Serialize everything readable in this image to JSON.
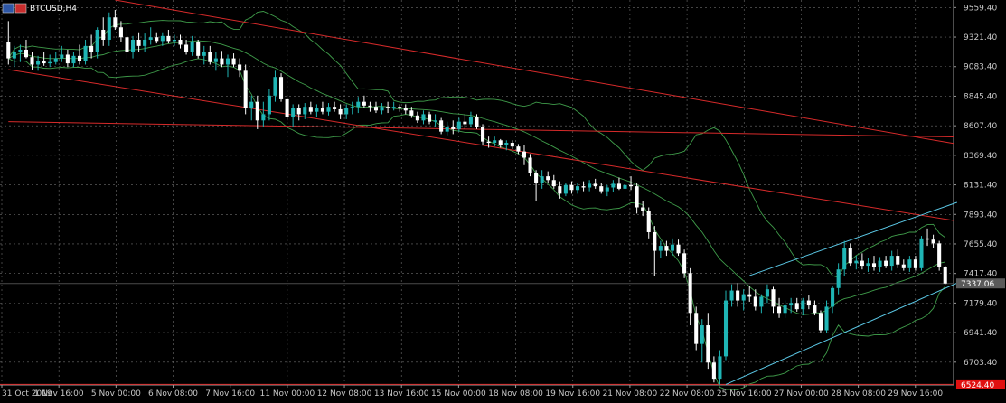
{
  "header": {
    "symbol": "BTCUSD,H4"
  },
  "chart_data": {
    "type": "candlestick",
    "symbol": "BTCUSD",
    "timeframe": "H4",
    "grid": true,
    "ylim": [
      6520,
      9620
    ],
    "y_ticks": [
      "9559.40",
      "9321.40",
      "9083.40",
      "8845.40",
      "8607.40",
      "8369.40",
      "8131.40",
      "7893.40",
      "7655.40",
      "7417.40",
      "7179.40",
      "6941.40",
      "6703.40"
    ],
    "x_ticks": [
      "31 Oct 2019",
      "1 Nov 16:00",
      "5 Nov 00:00",
      "6 Nov 08:00",
      "7 Nov 16:00",
      "11 Nov 00:00",
      "12 Nov 08:00",
      "13 Nov 16:00",
      "15 Nov 00:00",
      "18 Nov 08:00",
      "19 Nov 16:00",
      "21 Nov 08:00",
      "22 Nov 08:00",
      "25 Nov 16:00",
      "27 Nov 00:00",
      "28 Nov 08:00",
      "29 Nov 16:00"
    ],
    "current_price": "7337.06",
    "low_level": "6524.40",
    "colors": {
      "bull": "#1fb5b5",
      "bear": "#ffffff",
      "grid": "#6e6e6e",
      "band": "#3f9c4a",
      "trend": "#d62a2a",
      "channel": "#5bc8e6",
      "price_tag_bg": "#5a5a5a",
      "low_tag_bg": "#e01010"
    },
    "candles": [
      [
        9280,
        9450,
        9100,
        9150
      ],
      [
        9150,
        9250,
        9080,
        9200
      ],
      [
        9200,
        9260,
        9120,
        9220
      ],
      [
        9220,
        9300,
        9150,
        9160
      ],
      [
        9160,
        9200,
        9060,
        9100
      ],
      [
        9100,
        9170,
        9050,
        9130
      ],
      [
        9130,
        9200,
        9090,
        9110
      ],
      [
        9110,
        9180,
        9080,
        9120
      ],
      [
        9120,
        9200,
        9100,
        9150
      ],
      [
        9150,
        9250,
        9120,
        9180
      ],
      [
        9180,
        9220,
        9080,
        9110
      ],
      [
        9110,
        9200,
        9080,
        9170
      ],
      [
        9170,
        9260,
        9100,
        9130
      ],
      [
        9130,
        9300,
        9100,
        9250
      ],
      [
        9250,
        9340,
        9150,
        9200
      ],
      [
        9200,
        9400,
        9150,
        9380
      ],
      [
        9380,
        9480,
        9250,
        9300
      ],
      [
        9300,
        9520,
        9250,
        9480
      ],
      [
        9480,
        9540,
        9380,
        9400
      ],
      [
        9400,
        9450,
        9280,
        9320
      ],
      [
        9320,
        9400,
        9150,
        9200
      ],
      [
        9200,
        9330,
        9150,
        9300
      ],
      [
        9300,
        9360,
        9200,
        9250
      ],
      [
        9250,
        9350,
        9200,
        9300
      ],
      [
        9300,
        9400,
        9260,
        9320
      ],
      [
        9320,
        9360,
        9270,
        9290
      ],
      [
        9290,
        9360,
        9250,
        9330
      ],
      [
        9330,
        9380,
        9270,
        9290
      ],
      [
        9290,
        9340,
        9250,
        9300
      ],
      [
        9300,
        9340,
        9230,
        9260
      ],
      [
        9260,
        9300,
        9180,
        9200
      ],
      [
        9200,
        9330,
        9170,
        9280
      ],
      [
        9280,
        9300,
        9150,
        9170
      ],
      [
        9170,
        9250,
        9100,
        9200
      ],
      [
        9200,
        9250,
        9100,
        9120
      ],
      [
        9120,
        9200,
        9050,
        9150
      ],
      [
        9150,
        9210,
        9080,
        9100
      ],
      [
        9100,
        9180,
        9000,
        9150
      ],
      [
        9150,
        9190,
        9080,
        9100
      ],
      [
        9100,
        9150,
        9000,
        9050
      ],
      [
        9050,
        9100,
        8700,
        8750
      ],
      [
        8750,
        8850,
        8650,
        8800
      ],
      [
        8800,
        8850,
        8580,
        8650
      ],
      [
        8650,
        8800,
        8600,
        8700
      ],
      [
        8700,
        8900,
        8650,
        8850
      ],
      [
        8850,
        9050,
        8800,
        9000
      ],
      [
        9000,
        9030,
        8800,
        8820
      ],
      [
        8820,
        8830,
        8650,
        8680
      ],
      [
        8680,
        8780,
        8600,
        8750
      ],
      [
        8750,
        8780,
        8650,
        8700
      ],
      [
        8700,
        8790,
        8660,
        8760
      ],
      [
        8760,
        8800,
        8700,
        8720
      ],
      [
        8720,
        8780,
        8680,
        8750
      ],
      [
        8750,
        8800,
        8700,
        8720
      ],
      [
        8720,
        8790,
        8690,
        8760
      ],
      [
        8760,
        8800,
        8720,
        8740
      ],
      [
        8740,
        8780,
        8660,
        8700
      ],
      [
        8700,
        8780,
        8660,
        8750
      ],
      [
        8750,
        8800,
        8700,
        8760
      ],
      [
        8760,
        8840,
        8710,
        8800
      ],
      [
        8800,
        8850,
        8750,
        8770
      ],
      [
        8770,
        8800,
        8720,
        8760
      ],
      [
        8760,
        8800,
        8710,
        8730
      ],
      [
        8730,
        8790,
        8700,
        8760
      ],
      [
        8760,
        8800,
        8710,
        8750
      ],
      [
        8750,
        8800,
        8730,
        8760
      ],
      [
        8760,
        8780,
        8720,
        8750
      ],
      [
        8750,
        8780,
        8700,
        8730
      ],
      [
        8730,
        8760,
        8670,
        8690
      ],
      [
        8690,
        8720,
        8630,
        8650
      ],
      [
        8650,
        8730,
        8620,
        8700
      ],
      [
        8700,
        8720,
        8620,
        8640
      ],
      [
        8640,
        8700,
        8600,
        8650
      ],
      [
        8650,
        8670,
        8540,
        8560
      ],
      [
        8560,
        8640,
        8530,
        8600
      ],
      [
        8600,
        8650,
        8540,
        8580
      ],
      [
        8580,
        8670,
        8560,
        8640
      ],
      [
        8640,
        8700,
        8580,
        8620
      ],
      [
        8620,
        8720,
        8600,
        8680
      ],
      [
        8680,
        8700,
        8580,
        8600
      ],
      [
        8600,
        8620,
        8450,
        8480
      ],
      [
        8480,
        8520,
        8430,
        8470
      ],
      [
        8470,
        8520,
        8440,
        8490
      ],
      [
        8490,
        8500,
        8430,
        8450
      ],
      [
        8450,
        8490,
        8410,
        8470
      ],
      [
        8470,
        8490,
        8420,
        8440
      ],
      [
        8440,
        8460,
        8380,
        8400
      ],
      [
        8400,
        8450,
        8290,
        8350
      ],
      [
        8350,
        8380,
        8200,
        8230
      ],
      [
        8230,
        8250,
        8000,
        8150
      ],
      [
        8150,
        8250,
        8100,
        8200
      ],
      [
        8200,
        8240,
        8150,
        8170
      ],
      [
        8170,
        8210,
        8100,
        8120
      ],
      [
        8120,
        8160,
        8020,
        8060
      ],
      [
        8060,
        8150,
        8040,
        8130
      ],
      [
        8130,
        8160,
        8060,
        8090
      ],
      [
        8090,
        8150,
        8060,
        8120
      ],
      [
        8120,
        8160,
        8080,
        8110
      ],
      [
        8110,
        8170,
        8080,
        8140
      ],
      [
        8140,
        8180,
        8100,
        8120
      ],
      [
        8120,
        8150,
        8060,
        8080
      ],
      [
        8080,
        8130,
        8040,
        8110
      ],
      [
        8110,
        8170,
        8070,
        8140
      ],
      [
        8140,
        8190,
        8090,
        8100
      ],
      [
        8100,
        8160,
        8070,
        8130
      ],
      [
        8130,
        8200,
        8090,
        8120
      ],
      [
        8120,
        8150,
        7900,
        7950
      ],
      [
        7950,
        8000,
        7880,
        7920
      ],
      [
        7920,
        7950,
        7700,
        7750
      ],
      [
        7750,
        7800,
        7400,
        7600
      ],
      [
        7600,
        7680,
        7540,
        7640
      ],
      [
        7640,
        7680,
        7560,
        7600
      ],
      [
        7600,
        7700,
        7560,
        7650
      ],
      [
        7650,
        7690,
        7560,
        7580
      ],
      [
        7580,
        7610,
        7380,
        7420
      ],
      [
        7420,
        7460,
        7000,
        7100
      ],
      [
        7100,
        7150,
        6800,
        6850
      ],
      [
        6850,
        7050,
        6700,
        7000
      ],
      [
        7000,
        7100,
        6650,
        6700
      ],
      [
        6700,
        6750,
        6540,
        6570
      ],
      [
        6570,
        6800,
        6524,
        6750
      ],
      [
        6750,
        7280,
        6720,
        7200
      ],
      [
        7200,
        7330,
        7150,
        7280
      ],
      [
        7280,
        7340,
        7150,
        7200
      ],
      [
        7200,
        7290,
        7120,
        7250
      ],
      [
        7250,
        7320,
        7190,
        7230
      ],
      [
        7230,
        7290,
        7120,
        7150
      ],
      [
        7150,
        7250,
        7100,
        7230
      ],
      [
        7230,
        7330,
        7180,
        7290
      ],
      [
        7290,
        7310,
        7100,
        7150
      ],
      [
        7150,
        7220,
        7060,
        7100
      ],
      [
        7100,
        7200,
        7060,
        7160
      ],
      [
        7160,
        7220,
        7100,
        7180
      ],
      [
        7180,
        7220,
        7110,
        7130
      ],
      [
        7130,
        7220,
        7080,
        7200
      ],
      [
        7200,
        7240,
        7130,
        7160
      ],
      [
        7160,
        7200,
        7080,
        7100
      ],
      [
        7100,
        7120,
        6940,
        6960
      ],
      [
        6960,
        7200,
        6940,
        7150
      ],
      [
        7150,
        7320,
        7100,
        7300
      ],
      [
        7300,
        7500,
        7250,
        7450
      ],
      [
        7450,
        7680,
        7400,
        7620
      ],
      [
        7620,
        7660,
        7480,
        7500
      ],
      [
        7500,
        7560,
        7450,
        7520
      ],
      [
        7520,
        7580,
        7450,
        7480
      ],
      [
        7480,
        7540,
        7430,
        7500
      ],
      [
        7500,
        7560,
        7440,
        7470
      ],
      [
        7470,
        7550,
        7430,
        7520
      ],
      [
        7520,
        7560,
        7460,
        7480
      ],
      [
        7480,
        7600,
        7440,
        7560
      ],
      [
        7560,
        7610,
        7460,
        7490
      ],
      [
        7490,
        7530,
        7440,
        7460
      ],
      [
        7460,
        7560,
        7430,
        7530
      ],
      [
        7530,
        7560,
        7440,
        7460
      ],
      [
        7460,
        7720,
        7440,
        7700
      ],
      [
        7700,
        7780,
        7640,
        7690
      ],
      [
        7690,
        7730,
        7620,
        7660
      ],
      [
        7660,
        7680,
        7440,
        7470
      ],
      [
        7470,
        7480,
        7330,
        7337.06
      ]
    ]
  }
}
